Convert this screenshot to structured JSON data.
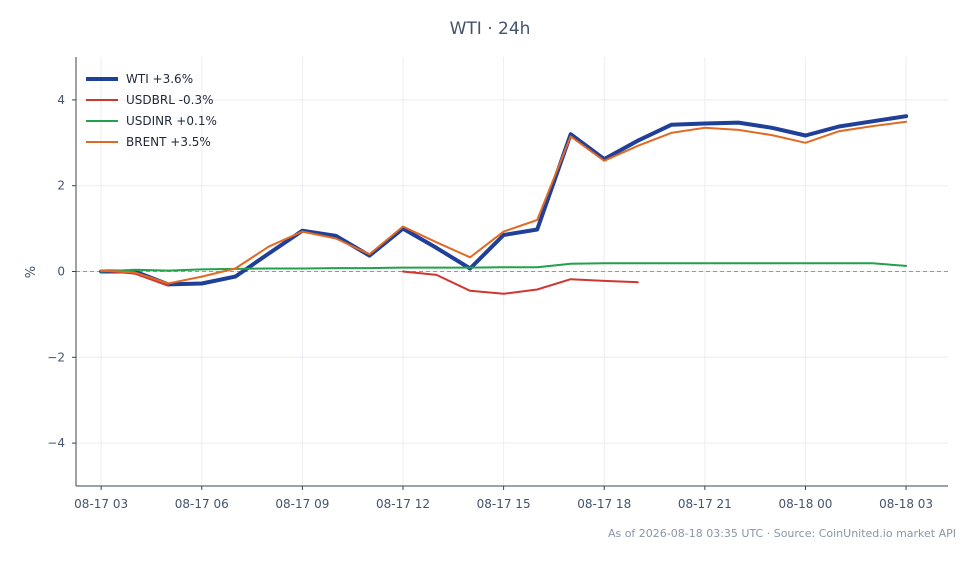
{
  "chart_data": {
    "type": "line",
    "title": "WTI · 24h",
    "ylabel": "%",
    "xlabel": "",
    "xlim": [
      "08-17 02:15",
      "08-18 04:15"
    ],
    "ylim": [
      -5,
      5
    ],
    "yticks": [
      4,
      2,
      0,
      -2,
      -4
    ],
    "ytick_labels": [
      "4",
      "2",
      "0",
      "−2",
      "−4"
    ],
    "x_tick_labels": [
      "08-17 03",
      "08-17 06",
      "08-17 09",
      "08-17 12",
      "08-17 15",
      "08-17 18",
      "08-17 21",
      "08-18 00",
      "08-18 03"
    ],
    "x_tick_hours": [
      0,
      3,
      6,
      9,
      12,
      15,
      18,
      21,
      24
    ],
    "grid": true,
    "zero_line": true,
    "legend_position": "top-left",
    "series": [
      {
        "name": "WTI +3.6%",
        "color": "#1f3f99",
        "width": 4,
        "x": [
          0,
          1,
          2,
          3,
          4,
          5,
          6,
          7,
          8,
          9,
          10,
          11,
          12,
          13,
          14,
          15,
          16,
          17,
          18,
          19,
          20,
          21,
          22,
          23,
          24
        ],
        "y": [
          0.0,
          0.0,
          -0.3,
          -0.28,
          -0.12,
          0.42,
          0.95,
          0.83,
          0.37,
          1.0,
          0.55,
          0.07,
          0.85,
          0.98,
          3.2,
          2.62,
          3.05,
          3.42,
          3.45,
          3.47,
          3.35,
          3.17,
          3.38,
          3.5,
          3.62
        ]
      },
      {
        "name": "USDBRL -0.3%",
        "color": "#d03630",
        "width": 2,
        "x": [
          0,
          1,
          2,
          9,
          10,
          11,
          12,
          13,
          14,
          15,
          16
        ],
        "y": [
          0.02,
          -0.05,
          -0.33,
          0.0,
          -0.08,
          -0.45,
          -0.52,
          -0.42,
          -0.18,
          -0.22,
          -0.25
        ]
      },
      {
        "name": "USDINR +0.1%",
        "color": "#22a04b",
        "width": 2,
        "x": [
          0,
          1,
          2,
          3,
          4,
          5,
          6,
          7,
          8,
          9,
          10,
          11,
          12,
          13,
          14,
          15,
          16,
          17,
          18,
          19,
          20,
          21,
          22,
          23,
          24
        ],
        "y": [
          0.0,
          0.04,
          0.02,
          0.05,
          0.06,
          0.07,
          0.07,
          0.08,
          0.08,
          0.09,
          0.09,
          0.09,
          0.1,
          0.1,
          0.18,
          0.19,
          0.19,
          0.19,
          0.19,
          0.19,
          0.19,
          0.19,
          0.19,
          0.19,
          0.13
        ]
      },
      {
        "name": "BRENT +3.5%",
        "color": "#e06a24",
        "width": 2,
        "x": [
          0,
          1,
          2,
          3,
          4,
          5,
          6,
          7,
          8,
          9,
          10,
          11,
          12,
          13,
          14,
          15,
          16,
          17,
          18,
          19,
          20,
          21,
          22,
          23,
          24
        ],
        "y": [
          0.02,
          -0.02,
          -0.28,
          -0.12,
          0.07,
          0.58,
          0.93,
          0.77,
          0.4,
          1.05,
          0.68,
          0.33,
          0.93,
          1.2,
          3.15,
          2.58,
          2.93,
          3.23,
          3.35,
          3.3,
          3.18,
          3.0,
          3.27,
          3.39,
          3.49
        ]
      }
    ]
  },
  "footer": "As of 2026-08-18 03:35 UTC · Source: CoinUnited.io market API"
}
